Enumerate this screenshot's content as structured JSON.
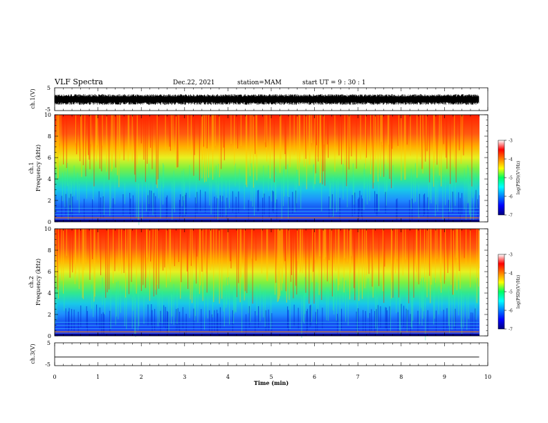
{
  "header": {
    "title": "VLF Spectra",
    "date": "Dec.22, 2021",
    "station": "station=MAM",
    "start": "start  UT =   9 : 30 : 1"
  },
  "chart_data": [
    {
      "type": "line",
      "panel": "waveform-ch1",
      "ylabel": "ch.1(V)",
      "yticks": [
        "5",
        "-5"
      ],
      "ylim": [
        -5,
        5
      ],
      "description_values": {
        "amplitude_range": [
          -2.5,
          2.2
        ]
      }
    },
    {
      "type": "heatmap",
      "panel": "spectrogram-ch1",
      "ylabel": "ch.1\nFrequency (kHz)",
      "ylabel_lines": [
        "ch.1",
        "Frequency (kHz)"
      ],
      "yticks": [
        "0",
        "2",
        "4",
        "6",
        "8",
        "10"
      ],
      "ylim": [
        0,
        10
      ],
      "xlim": [
        0,
        9.8
      ],
      "colorbar": {
        "label": "log(PSD)(V²/Hz)",
        "ticks": [
          "-3",
          "-4",
          "-5",
          "-6",
          "-7"
        ],
        "range": [
          -7,
          -3
        ]
      }
    },
    {
      "type": "heatmap",
      "panel": "spectrogram-ch2",
      "ylabel_lines": [
        "ch.2",
        "Frequency (kHz)"
      ],
      "yticks": [
        "0",
        "2",
        "4",
        "6",
        "8",
        "10"
      ],
      "ylim": [
        0,
        10
      ],
      "xlim": [
        0,
        9.8
      ],
      "colorbar": {
        "label": "log(PSD)(V²/Hz)",
        "ticks": [
          "-3",
          "-4",
          "-5",
          "-6",
          "-7"
        ],
        "range": [
          -7,
          -3
        ]
      }
    },
    {
      "type": "line",
      "panel": "waveform-ch3",
      "ylabel": "ch.3(V)",
      "yticks": [
        "5",
        "-5"
      ],
      "ylim": [
        -5,
        5
      ],
      "x": [
        0,
        9.8
      ],
      "y": [
        -1.2,
        -1.2
      ]
    }
  ],
  "xaxis": {
    "label": "Time (min)",
    "ticks": [
      "0",
      "1",
      "2",
      "3",
      "4",
      "5",
      "6",
      "7",
      "8",
      "9",
      "10"
    ],
    "xlim": [
      0,
      10
    ]
  }
}
